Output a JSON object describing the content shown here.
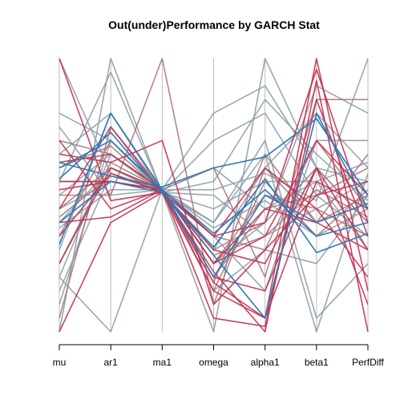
{
  "chart_data": {
    "type": "parallel-coordinates",
    "title": "Out(under)Performance by GARCH Stat",
    "axes": [
      "mu",
      "ar1",
      "ma1",
      "omega",
      "alpha1",
      "beta1",
      "PerfDiff"
    ],
    "ylim": [
      0,
      1
    ],
    "grid": false,
    "legend": "none",
    "colors": {
      "outperform": "#2c7bb6",
      "underperform": "#c2304f",
      "neutral": "#8f9ea8",
      "mixed": "#a8797f",
      "axis": "#bebebe"
    },
    "series": [
      {
        "group": "underperform",
        "values": [
          1.0,
          0.48,
          0.51,
          0.22,
          0.0,
          0.92,
          0.0
        ]
      },
      {
        "group": "underperform",
        "values": [
          0.7,
          0.45,
          0.52,
          0.18,
          0.05,
          1.0,
          0.15
        ]
      },
      {
        "group": "underperform",
        "values": [
          0.62,
          0.65,
          0.52,
          0.35,
          0.4,
          0.96,
          0.4
        ]
      },
      {
        "group": "underperform",
        "values": [
          0.4,
          0.42,
          0.52,
          0.05,
          0.02,
          0.85,
          0.35
        ]
      },
      {
        "group": "underperform",
        "values": [
          0.35,
          0.58,
          0.51,
          0.3,
          0.25,
          0.6,
          0.3
        ]
      },
      {
        "group": "underperform",
        "values": [
          0.25,
          0.6,
          0.52,
          0.25,
          0.35,
          0.7,
          0.5
        ]
      },
      {
        "group": "underperform",
        "values": [
          0.45,
          0.75,
          0.51,
          0.15,
          0.05,
          0.55,
          0.45
        ]
      },
      {
        "group": "underperform",
        "values": [
          0.55,
          0.55,
          0.52,
          0.25,
          0.45,
          0.4,
          0.3
        ]
      },
      {
        "group": "underperform",
        "values": [
          0.0,
          0.4,
          0.51,
          0.35,
          0.6,
          0.45,
          0.2
        ]
      },
      {
        "group": "underperform",
        "values": [
          0.65,
          0.62,
          0.7,
          0.1,
          0.3,
          0.5,
          0.55
        ]
      },
      {
        "group": "underperform",
        "values": [
          0.52,
          0.55,
          0.52,
          0.2,
          0.15,
          0.6,
          0.1
        ]
      },
      {
        "group": "outperform",
        "values": [
          0.32,
          0.8,
          0.52,
          0.36,
          0.52,
          0.35,
          0.4
        ]
      },
      {
        "group": "outperform",
        "values": [
          0.62,
          0.57,
          0.53,
          0.6,
          0.64,
          0.78,
          0.5
        ]
      },
      {
        "group": "outperform",
        "values": [
          0.4,
          0.55,
          0.51,
          0.28,
          0.05,
          0.8,
          0.45
        ]
      },
      {
        "group": "outperform",
        "values": [
          0.56,
          0.73,
          0.51,
          0.31,
          0.56,
          0.29,
          0.36
        ]
      },
      {
        "group": "outperform",
        "values": [
          0.6,
          0.7,
          0.52,
          0.2,
          0.5,
          0.4,
          0.47
        ]
      },
      {
        "group": "neutral",
        "values": [
          1.0,
          0.58,
          0.52,
          0.52,
          0.58,
          0.48,
          1.0
        ]
      },
      {
        "group": "neutral",
        "values": [
          0.75,
          0.5,
          0.52,
          0.8,
          0.9,
          0.6,
          0.55
        ]
      },
      {
        "group": "neutral",
        "values": [
          0.2,
          0.0,
          0.52,
          0.4,
          0.7,
          0.05,
          0.25
        ]
      },
      {
        "group": "neutral",
        "values": [
          0.0,
          1.0,
          0.51,
          0.3,
          0.6,
          0.8,
          0.6
        ]
      },
      {
        "group": "neutral",
        "values": [
          0.55,
          0.95,
          0.51,
          0.0,
          1.0,
          0.6,
          0.4
        ]
      },
      {
        "group": "neutral",
        "values": [
          0.3,
          0.8,
          0.52,
          0.6,
          0.45,
          0.55,
          0.3
        ]
      },
      {
        "group": "neutral",
        "values": [
          0.1,
          0.7,
          0.51,
          0.7,
          0.8,
          0.5,
          0.35
        ]
      },
      {
        "group": "neutral",
        "values": [
          0.45,
          0.55,
          0.52,
          0.15,
          0.3,
          0.25,
          0.5
        ]
      },
      {
        "group": "neutral",
        "values": [
          0.65,
          0.8,
          0.51,
          0.4,
          0.65,
          0.0,
          0.58
        ]
      },
      {
        "group": "neutral",
        "values": [
          0.2,
          0.65,
          0.52,
          0.35,
          0.15,
          0.7,
          0.7
        ]
      },
      {
        "group": "neutral",
        "values": [
          0.4,
          0.6,
          0.52,
          0.25,
          0.4,
          0.9,
          0.8
        ]
      },
      {
        "group": "neutral",
        "values": [
          0.8,
          0.7,
          0.51,
          0.5,
          0.35,
          0.45,
          0.55
        ]
      },
      {
        "group": "neutral",
        "values": [
          0.5,
          0.65,
          0.51,
          0.45,
          0.55,
          0.55,
          0.62
        ]
      },
      {
        "group": "neutral",
        "values": [
          0.38,
          0.52,
          0.52,
          0.38,
          0.48,
          0.35,
          0.45
        ]
      },
      {
        "group": "neutral",
        "values": [
          0.15,
          0.58,
          0.51,
          0.55,
          0.85,
          0.65,
          0.48
        ]
      },
      {
        "group": "mixed",
        "values": [
          0.7,
          0.65,
          0.52,
          0.2,
          0.45,
          0.5,
          0.6
        ]
      },
      {
        "group": "mixed",
        "values": [
          0.45,
          0.6,
          0.51,
          0.3,
          0.4,
          0.6,
          0.4
        ]
      },
      {
        "group": "mixed",
        "values": [
          0.35,
          0.7,
          0.52,
          0.15,
          0.55,
          0.35,
          0.52
        ]
      },
      {
        "group": "mixed",
        "values": [
          0.55,
          0.55,
          0.51,
          0.35,
          0.3,
          0.7,
          0.45
        ]
      },
      {
        "group": "mixed",
        "values": [
          0.25,
          0.62,
          0.52,
          0.25,
          0.5,
          0.45,
          0.35
        ]
      },
      {
        "group": "mixed",
        "values": [
          0.6,
          0.68,
          0.51,
          0.18,
          0.65,
          0.4,
          0.65
        ]
      },
      {
        "group": "mixed",
        "values": [
          0.42,
          0.57,
          0.52,
          0.28,
          0.35,
          0.52,
          0.42
        ]
      },
      {
        "group": "mixed",
        "values": [
          0.05,
          0.75,
          0.52,
          0.6,
          0.2,
          0.85,
          0.85
        ]
      },
      {
        "group": "mixed",
        "values": [
          0.5,
          0.5,
          1.0,
          0.1,
          0.6,
          0.4,
          0.5
        ]
      }
    ]
  }
}
